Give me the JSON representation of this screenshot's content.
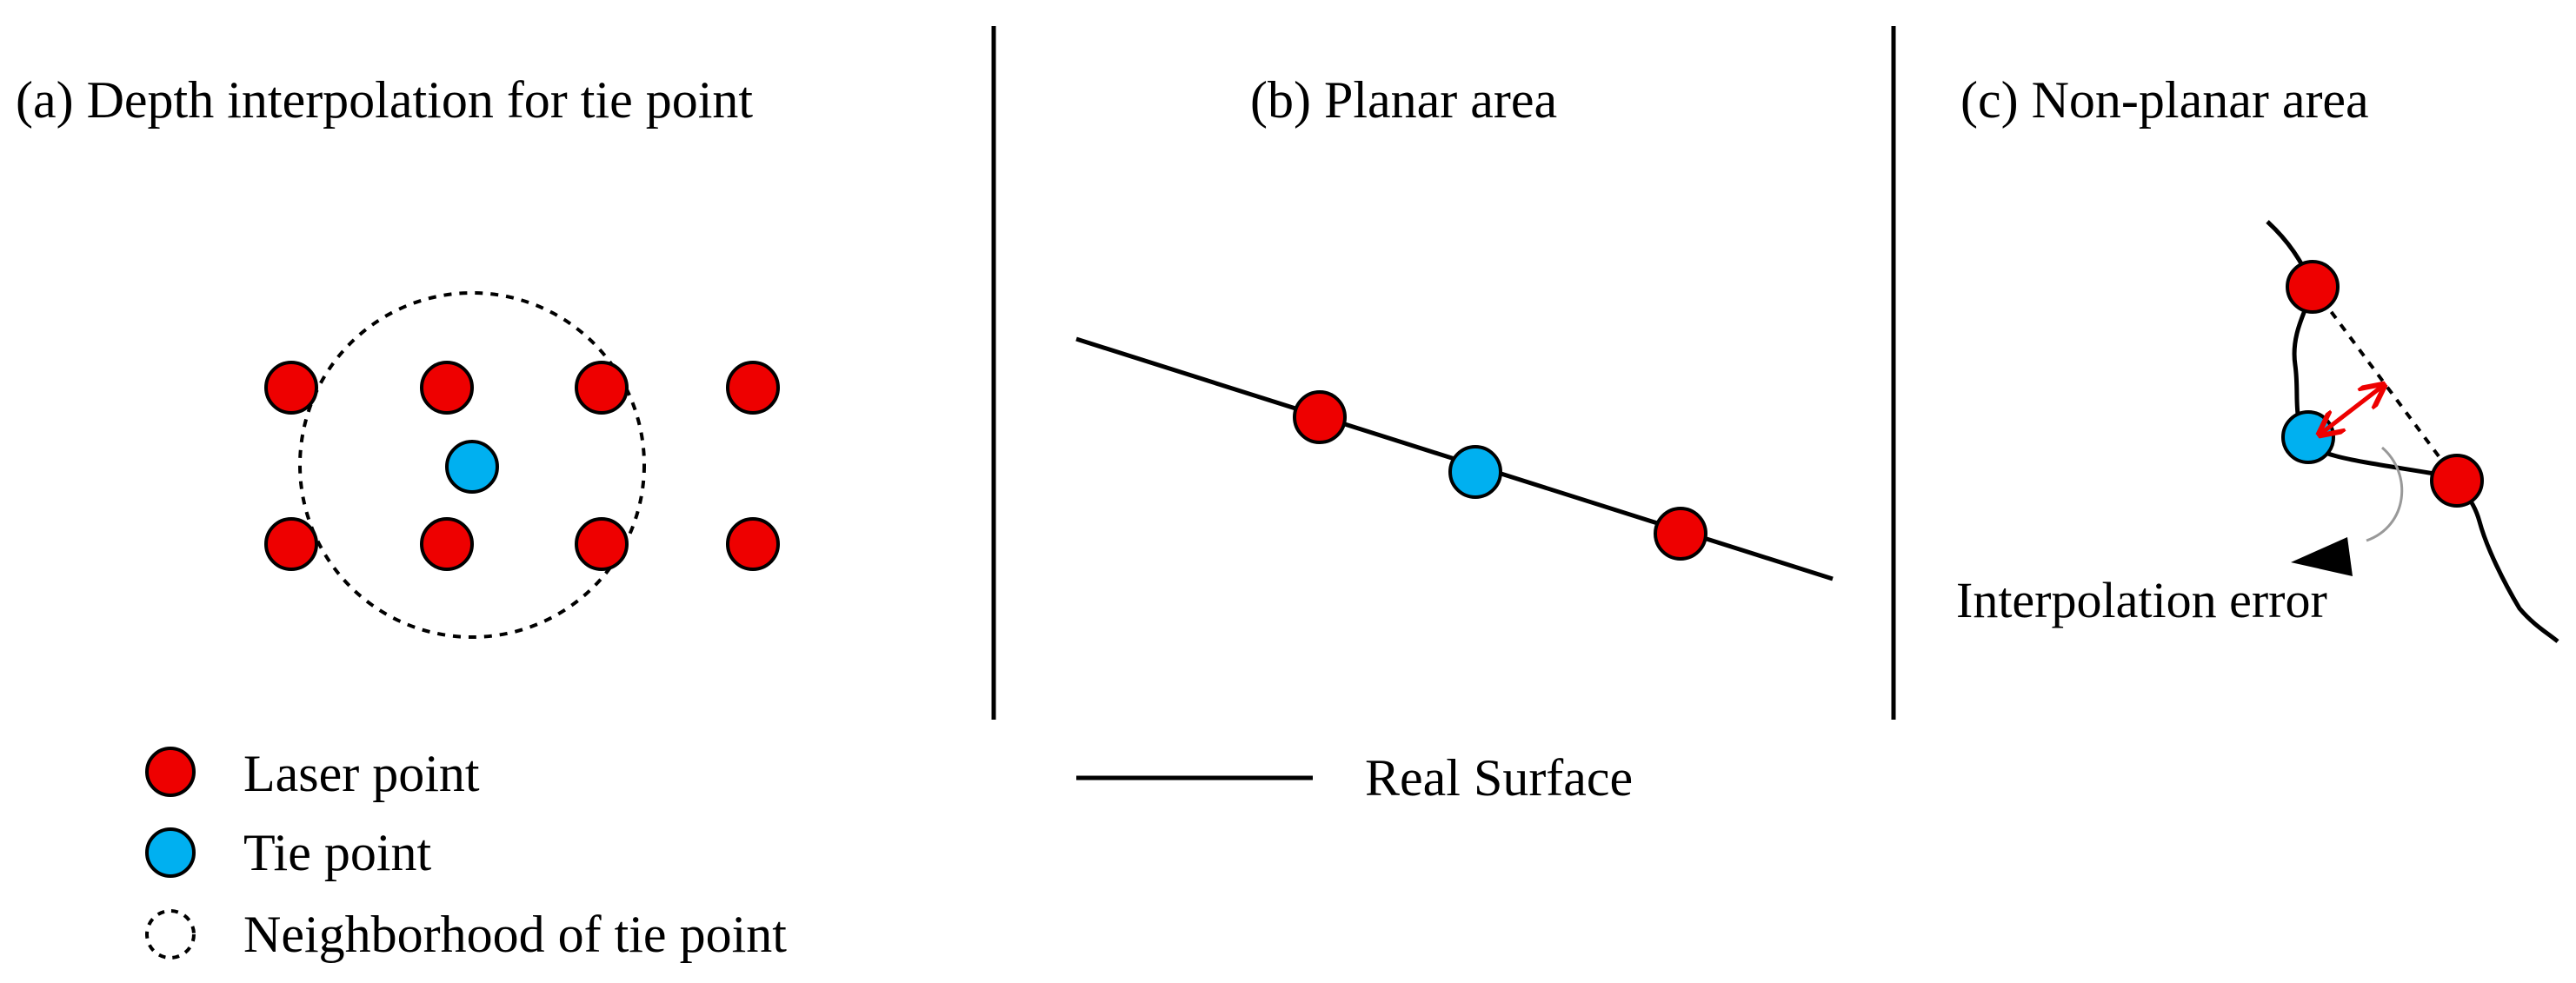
{
  "panels": {
    "a": {
      "title": "(a) Depth interpolation for tie point"
    },
    "b": {
      "title": "(b) Planar area"
    },
    "c": {
      "title": "(c)  Non-planar area",
      "annotation": "Interpolation error"
    }
  },
  "legend": {
    "laser": "Laser point",
    "tie": "Tie point",
    "neighborhood": "Neighborhood of tie point",
    "surface": "Real Surface"
  },
  "colors": {
    "laser": "#ee0000",
    "tie": "#00b0f0",
    "error_arrow": "#ee0000",
    "outline": "#000000"
  }
}
